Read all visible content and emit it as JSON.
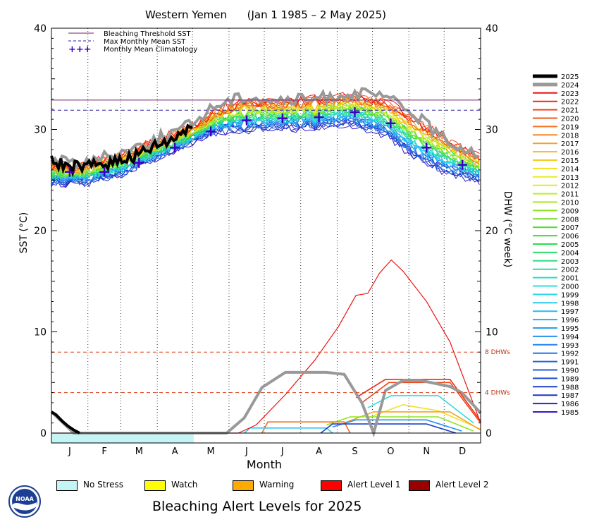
{
  "chart_data": {
    "type": "line",
    "title": "Western Yemen      (Jan 1 1985 – 2 May 2025)",
    "xlabel": "Month",
    "ylabel": "SST (°C)",
    "ylabel_right": "DHW (°C week)",
    "ylim": [
      0,
      40
    ],
    "yticks": [
      0,
      10,
      20,
      30,
      40
    ],
    "yticks_right": [
      0,
      10,
      20,
      30,
      40
    ],
    "grid": "vertical dotted lines at month boundaries",
    "x_domain_days": [
      1,
      366
    ],
    "months": [
      "J",
      "F",
      "M",
      "A",
      "M",
      "J",
      "J",
      "A",
      "S",
      "O",
      "N",
      "D"
    ],
    "thresholds": {
      "bleaching_threshold_sst": 32.9,
      "max_monthly_mean_sst": 31.9,
      "dhw_levels": [
        {
          "value": 8,
          "label": "8 DHWs"
        },
        {
          "value": 4,
          "label": "4 DHWs"
        }
      ]
    },
    "monthly_mean_climatology": [
      25.8,
      25.8,
      26.7,
      28.2,
      29.8,
      30.9,
      31.1,
      31.2,
      31.7,
      30.6,
      28.2,
      26.5
    ],
    "legend": [
      {
        "label": "Bleaching Threshold SST",
        "style": "solid",
        "color": "#7a1f6e"
      },
      {
        "label": "Max Monthly Mean SST",
        "style": "dashed",
        "color": "#2b1aa8"
      },
      {
        "label": "Monthly Mean Climatology",
        "style": "plus",
        "color": "#3a00c0"
      }
    ],
    "legend_position": "top-left",
    "years": [
      "2025",
      "2024",
      "2023",
      "2022",
      "2021",
      "2020",
      "2019",
      "2018",
      "2017",
      "2016",
      "2015",
      "2014",
      "2013",
      "2012",
      "2011",
      "2010",
      "2009",
      "2008",
      "2007",
      "2006",
      "2005",
      "2004",
      "2003",
      "2002",
      "2001",
      "2000",
      "1999",
      "1998",
      "1997",
      "1996",
      "1995",
      "1994",
      "1993",
      "1992",
      "1991",
      "1990",
      "1989",
      "1988",
      "1987",
      "1986",
      "1985"
    ],
    "year_colors": [
      "#000000",
      "#999999",
      "#ee1111",
      "#ee2a11",
      "#f24418",
      "#f25a18",
      "#f57020",
      "#f58a25",
      "#f5a22a",
      "#f5b82a",
      "#f5cc20",
      "#f5e020",
      "#eaea20",
      "#d8ee22",
      "#c0ee22",
      "#a6e622",
      "#8ee622",
      "#70de22",
      "#4ede28",
      "#32de32",
      "#2ade4e",
      "#2ade6a",
      "#2ade88",
      "#2adea2",
      "#2adec0",
      "#2adedc",
      "#2ad6e8",
      "#2acaf0",
      "#22bcf0",
      "#22aef0",
      "#22a0f0",
      "#2292f0",
      "#2284f0",
      "#1e76e8",
      "#1e68e0",
      "#1e5ad8",
      "#1e4cd0",
      "#1e3ec8",
      "#2230c8",
      "#2a22c8",
      "#3418c8"
    ],
    "sst_2025": {
      "days": [
        1,
        15,
        30,
        45,
        60,
        75,
        90,
        105,
        115,
        122
      ],
      "values": [
        26.8,
        26.3,
        26.2,
        26.6,
        27.0,
        27.5,
        28.3,
        29.0,
        30.0,
        30.4
      ]
    },
    "sst_2024": {
      "days": [
        1,
        30,
        60,
        90,
        120,
        140,
        165,
        195,
        225,
        255,
        285,
        310,
        335,
        366
      ],
      "values": [
        27.0,
        26.7,
        27.8,
        29.0,
        30.5,
        32.4,
        33.3,
        32.8,
        33.0,
        33.6,
        33.2,
        31.5,
        29.0,
        27.5
      ]
    },
    "sst_warm_envelope": {
      "days": [
        1,
        30,
        60,
        90,
        120,
        140,
        165,
        195,
        225,
        255,
        285,
        310,
        335,
        366
      ],
      "values": [
        26.5,
        26.5,
        27.4,
        28.8,
        30.2,
        31.8,
        32.8,
        32.7,
        32.9,
        33.4,
        32.8,
        31.0,
        29.2,
        27.2
      ]
    },
    "sst_cool_envelope": {
      "days": [
        1,
        30,
        60,
        90,
        120,
        140,
        165,
        195,
        225,
        255,
        285,
        310,
        335,
        366
      ],
      "values": [
        24.8,
        24.8,
        25.6,
        27.2,
        28.8,
        29.8,
        30.0,
        30.2,
        30.3,
        30.6,
        29.5,
        27.2,
        25.8,
        25.0
      ]
    },
    "dhw_2025": {
      "days": [
        1,
        5,
        10,
        15,
        20,
        25
      ],
      "values": [
        2.1,
        1.8,
        1.2,
        0.7,
        0.3,
        0.0
      ]
    },
    "dhw_2024": {
      "days": [
        1,
        20,
        95,
        150,
        165,
        180,
        200,
        225,
        235,
        250,
        265,
        275,
        285,
        300,
        315,
        340,
        350,
        366
      ],
      "values": [
        2.1,
        0.0,
        0.0,
        0.0,
        1.5,
        4.5,
        6.0,
        6.0,
        6.0,
        5.8,
        3.0,
        0.0,
        4.2,
        5.2,
        5.2,
        4.6,
        4.0,
        2.0
      ]
    },
    "dhw_2023": {
      "days": [
        1,
        160,
        175,
        200,
        225,
        245,
        260,
        270,
        280,
        290,
        300,
        320,
        340,
        366
      ],
      "values": [
        0,
        0,
        0.8,
        3.8,
        7.2,
        10.5,
        13.6,
        13.8,
        15.8,
        17.1,
        16.0,
        13.0,
        9.0,
        1.0
      ]
    },
    "dhw_other_years": [
      {
        "days": [
          260,
          285,
          340,
          366
        ],
        "values": [
          3.5,
          5.3,
          5.3,
          1.2
        ],
        "color": "#ee2a11"
      },
      {
        "days": [
          265,
          288,
          340,
          366
        ],
        "values": [
          3.0,
          5.0,
          5.0,
          1.0
        ],
        "color": "#f24418"
      },
      {
        "days": [
          270,
          290,
          330,
          360
        ],
        "values": [
          2.5,
          3.7,
          3.7,
          1.0
        ],
        "color": "#2adedc"
      },
      {
        "days": [
          270,
          300,
          330,
          366
        ],
        "values": [
          1.5,
          2.8,
          2.2,
          0.4
        ],
        "color": "#f5e020"
      },
      {
        "days": [
          250,
          275,
          340,
          366
        ],
        "values": [
          1.0,
          2.1,
          2.1,
          0.3
        ],
        "color": "#f5a22a"
      },
      {
        "days": [
          235,
          255,
          330,
          360
        ],
        "values": [
          0.8,
          1.6,
          1.6,
          0.2
        ],
        "color": "#8ee622"
      },
      {
        "days": [
          240,
          260,
          320,
          350
        ],
        "values": [
          0.6,
          1.3,
          1.3,
          0.2
        ],
        "color": "#2292f0"
      },
      {
        "days": [
          180,
          185,
          250,
          255
        ],
        "values": [
          0,
          1.1,
          1.1,
          0
        ],
        "color": "#f57020"
      },
      {
        "days": [
          165,
          170,
          235,
          240
        ],
        "values": [
          0,
          0.5,
          0.5,
          0
        ],
        "color": "#2acaf0"
      },
      {
        "days": [
          230,
          240,
          320,
          345
        ],
        "values": [
          0,
          0.9,
          0.9,
          0
        ],
        "color": "#1e3ec8"
      }
    ],
    "alert_band_2025": {
      "status": "No Stress",
      "start_day": 1,
      "end_day": 122,
      "color": "#c4f4f4"
    }
  },
  "alert_levels": [
    {
      "label": "No Stress",
      "color": "#c4f4f4"
    },
    {
      "label": "Watch",
      "color": "#ffff00"
    },
    {
      "label": "Warning",
      "color": "#ffaa00"
    },
    {
      "label": "Alert Level 1",
      "color": "#ff0000"
    },
    {
      "label": "Alert Level 2",
      "color": "#990000"
    }
  ],
  "footer_title": "Bleaching Alert Levels for 2025",
  "logo_text": "NOAA",
  "icons": {
    "logo": "noaa-logo-icon"
  }
}
